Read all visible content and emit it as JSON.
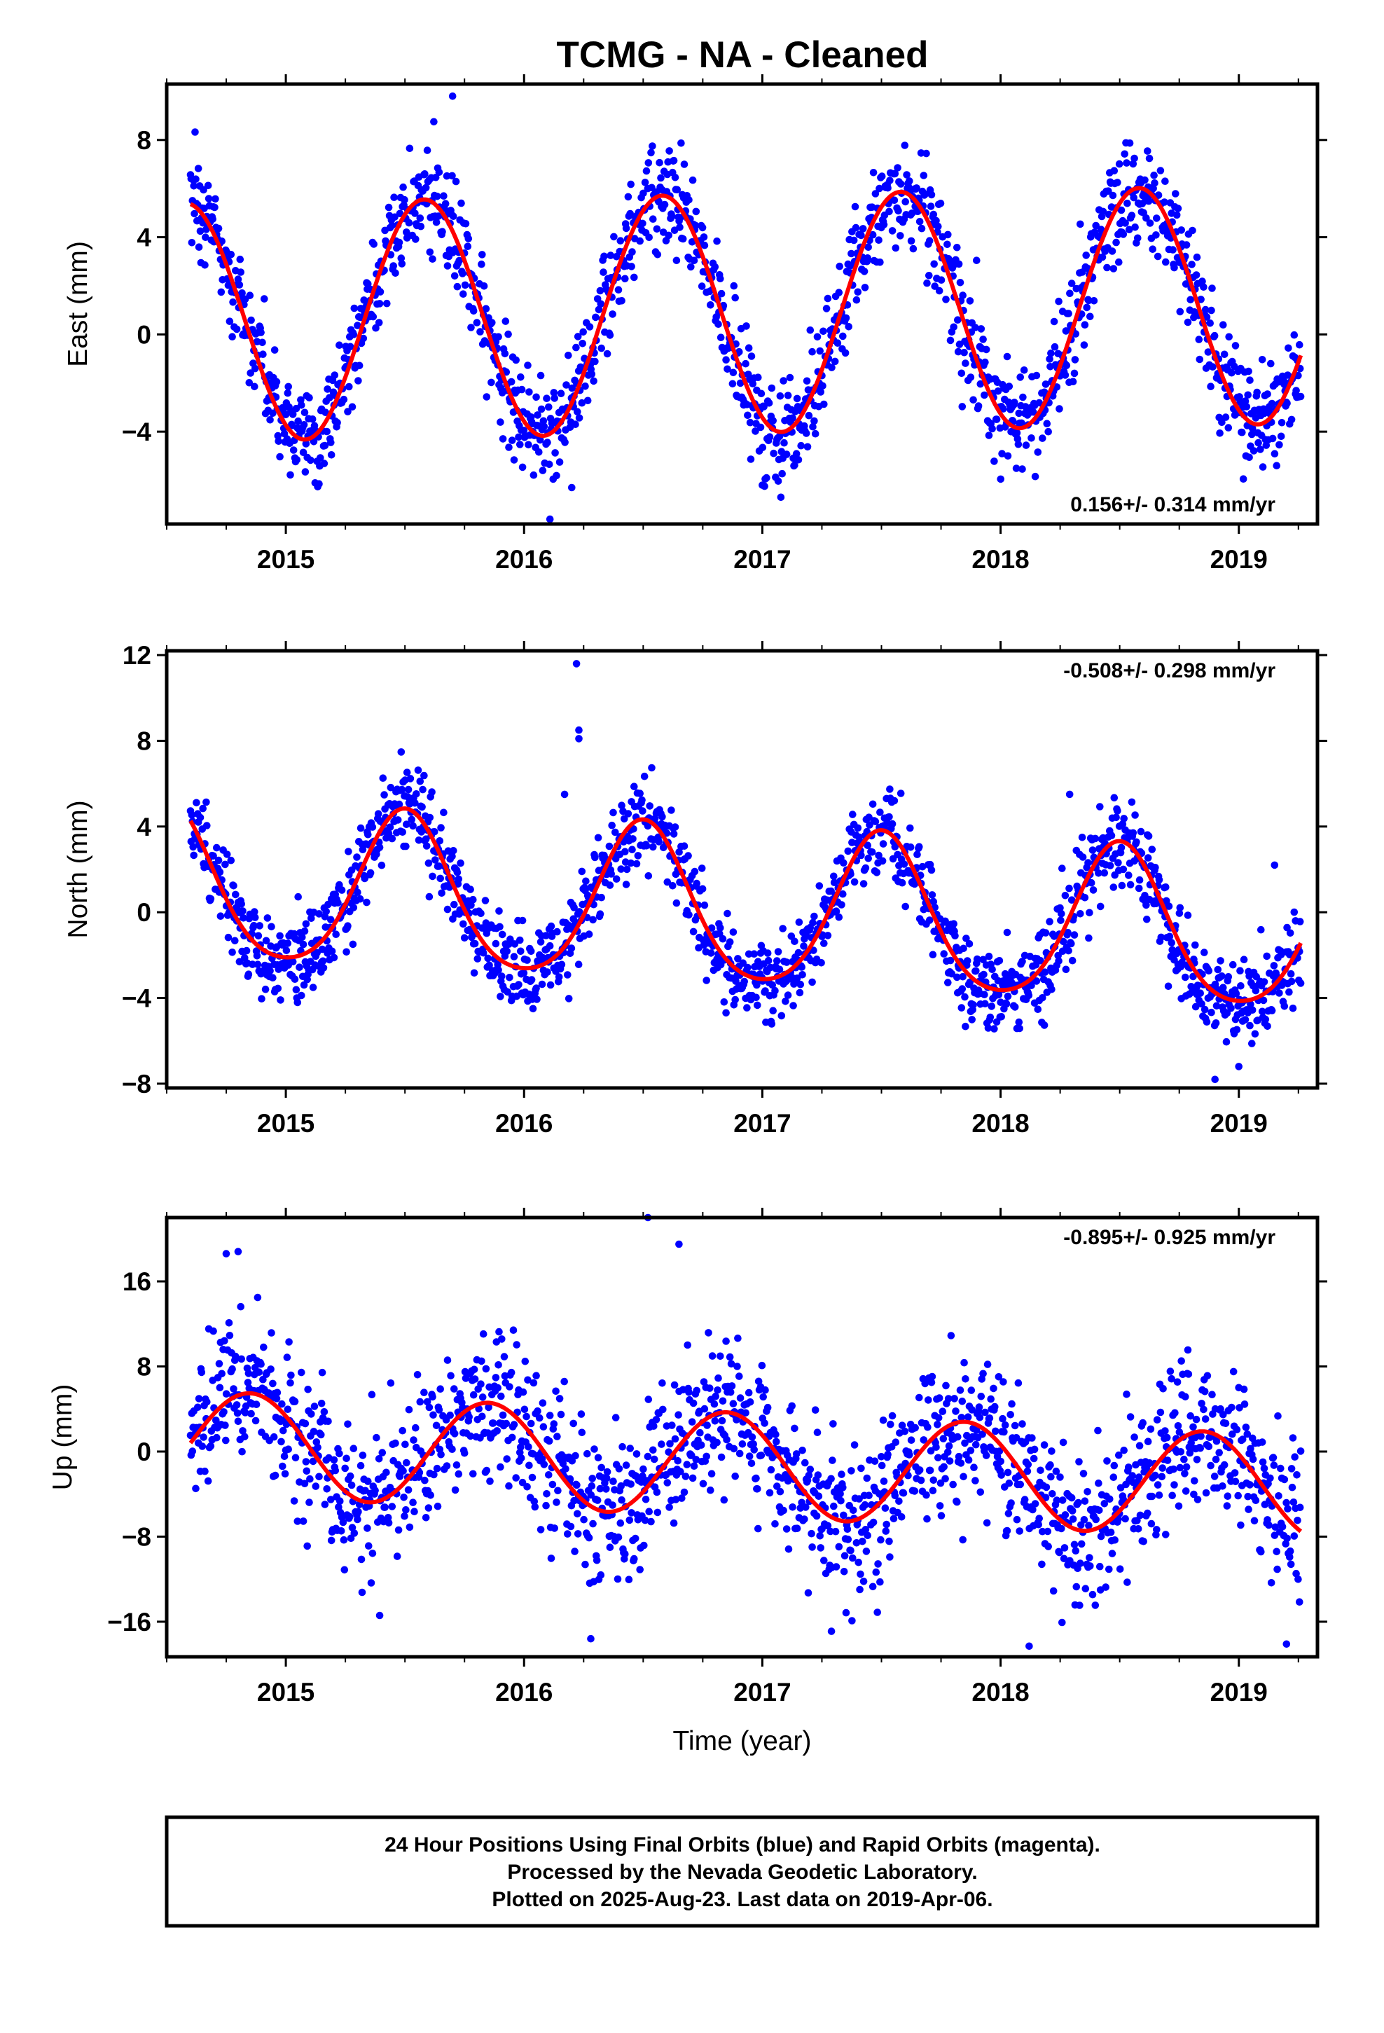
{
  "chart_data": [
    {
      "type": "scatter",
      "title": "TCMG  - NA - Cleaned",
      "ylabel": "East (mm)",
      "xlabel": "",
      "xlim": [
        2014.5,
        2019.33
      ],
      "ylim": [
        -7.8,
        10.3
      ],
      "x_ticks": [
        2015,
        2016,
        2017,
        2018,
        2019
      ],
      "y_ticks": [
        -4,
        0,
        4,
        8
      ],
      "rate_text": "0.156+/- 0.314 mm/yr",
      "rate_position": "bottom-right",
      "grid": false,
      "series": [
        {
          "kind": "points",
          "color": "#0000ff",
          "start": 2014.6,
          "end": 2019.26,
          "mean": 0.5,
          "amplitude": 4.9,
          "annual_peak": 0.58,
          "semiannual": 0.0,
          "trend": 0.156,
          "scatter": 1.1,
          "outliers": [
            [
              2016.2,
              -6.3
            ],
            [
              2017.0,
              -6.2
            ],
            [
              2015.7,
              9.8
            ]
          ]
        },
        {
          "kind": "fit",
          "color": "#ff0000",
          "start": 2014.6,
          "end": 2019.26,
          "mean": 0.5,
          "amplitude": 4.9,
          "annual_peak": 0.58,
          "semiannual": 0.0,
          "trend": 0.156
        }
      ]
    },
    {
      "type": "scatter",
      "title": "",
      "ylabel": "North (mm)",
      "xlabel": "",
      "xlim": [
        2014.5,
        2019.33
      ],
      "ylim": [
        -8.2,
        12.2
      ],
      "x_ticks": [
        2015,
        2016,
        2017,
        2018,
        2019
      ],
      "y_ticks": [
        -8,
        -4,
        0,
        4,
        8,
        12
      ],
      "rate_text": "-0.508+/- 0.298 mm/yr",
      "rate_position": "top-right",
      "grid": false,
      "series": [
        {
          "kind": "points",
          "color": "#0000ff",
          "start": 2014.6,
          "end": 2019.26,
          "mean": 1.2,
          "amplitude": 3.6,
          "annual_peak": 0.5,
          "semiannual": 0.5,
          "trend": -0.508,
          "scatter": 1.0,
          "outliers": [
            [
              2016.22,
              11.6
            ],
            [
              2016.23,
              8.5
            ],
            [
              2016.23,
              8.1
            ],
            [
              2016.17,
              5.5
            ],
            [
              2018.29,
              5.5
            ],
            [
              2019.15,
              2.2
            ],
            [
              2018.9,
              -7.8
            ],
            [
              2019.0,
              -7.2
            ]
          ]
        },
        {
          "kind": "fit",
          "color": "#ff0000",
          "start": 2014.6,
          "end": 2019.26,
          "mean": 1.2,
          "amplitude": 3.6,
          "annual_peak": 0.5,
          "semiannual": 0.5,
          "trend": -0.508
        }
      ]
    },
    {
      "type": "scatter",
      "title": "",
      "ylabel": "Up (mm)",
      "xlabel": "Time (year)",
      "xlim": [
        2014.5,
        2019.33
      ],
      "ylim": [
        -19.3,
        22.0
      ],
      "x_ticks": [
        2015,
        2016,
        2017,
        2018,
        2019
      ],
      "y_ticks": [
        -16,
        -8,
        0,
        8,
        16
      ],
      "rate_text": "-0.895+/- 0.925 mm/yr",
      "rate_position": "top-right",
      "grid": false,
      "series": [
        {
          "kind": "points",
          "color": "#0000ff",
          "start": 2014.6,
          "end": 2019.26,
          "mean": 0.8,
          "amplitude": 4.9,
          "annual_peak": 0.85,
          "semiannual": 0.0,
          "trend": -0.895,
          "scatter": 3.6,
          "outliers": [
            [
              2016.52,
              22.0
            ],
            [
              2016.65,
              19.5
            ],
            [
              2014.75,
              18.6
            ],
            [
              2014.8,
              18.8
            ],
            [
              2016.28,
              -17.6
            ],
            [
              2017.29,
              -16.9
            ],
            [
              2018.12,
              -18.3
            ],
            [
              2019.2,
              -18.1
            ]
          ]
        },
        {
          "kind": "fit",
          "color": "#ff0000",
          "start": 2014.6,
          "end": 2019.26,
          "mean": 0.8,
          "amplitude": 4.9,
          "annual_peak": 0.85,
          "semiannual": 0.0,
          "trend": -0.895
        }
      ]
    }
  ],
  "footer": {
    "line1": "24 Hour Positions Using Final Orbits (blue) and Rapid Orbits (magenta).",
    "line2": "Processed by the Nevada Geodetic Laboratory.",
    "line3": "Plotted on 2025-Aug-23. Last data on 2019-Apr-06."
  }
}
